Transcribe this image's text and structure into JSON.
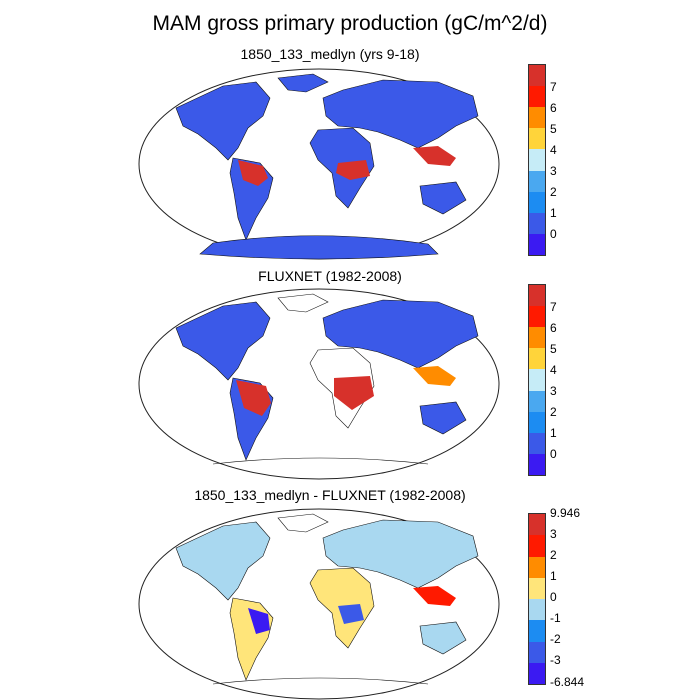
{
  "title": "MAM gross primary production (gC/m^2/d)",
  "panels": [
    {
      "title": "1850_133_medlyn (yrs 9-18)",
      "colorbar": {
        "labels": [
          "7",
          "6",
          "5",
          "4",
          "3",
          "2",
          "1",
          "0"
        ],
        "colors": [
          "#d7312b",
          "#ff1a00",
          "#ff8c00",
          "#ffd43a",
          "#c6ecf7",
          "#4aa8f0",
          "#1c8cf2",
          "#3b59e8",
          "#3b1af2"
        ]
      }
    },
    {
      "title": "FLUXNET (1982-2008)",
      "colorbar": {
        "labels": [
          "7",
          "6",
          "5",
          "4",
          "3",
          "2",
          "1",
          "0"
        ],
        "colors": [
          "#d7312b",
          "#ff1a00",
          "#ff8c00",
          "#ffd43a",
          "#c6ecf7",
          "#4aa8f0",
          "#1c8cf2",
          "#3b59e8",
          "#3b1af2"
        ]
      }
    },
    {
      "title": "1850_133_medlyn - FLUXNET (1982-2008)",
      "colorbar": {
        "labels": [
          "9.946",
          "3",
          "2",
          "1",
          "0",
          "-1",
          "-2",
          "-3",
          "-6.844"
        ],
        "colors": [
          "#d7312b",
          "#ff1a00",
          "#ff8c00",
          "#ffe57a",
          "#a9d8f0",
          "#1c8cf2",
          "#3b59e8",
          "#3b1af2"
        ]
      }
    }
  ]
}
